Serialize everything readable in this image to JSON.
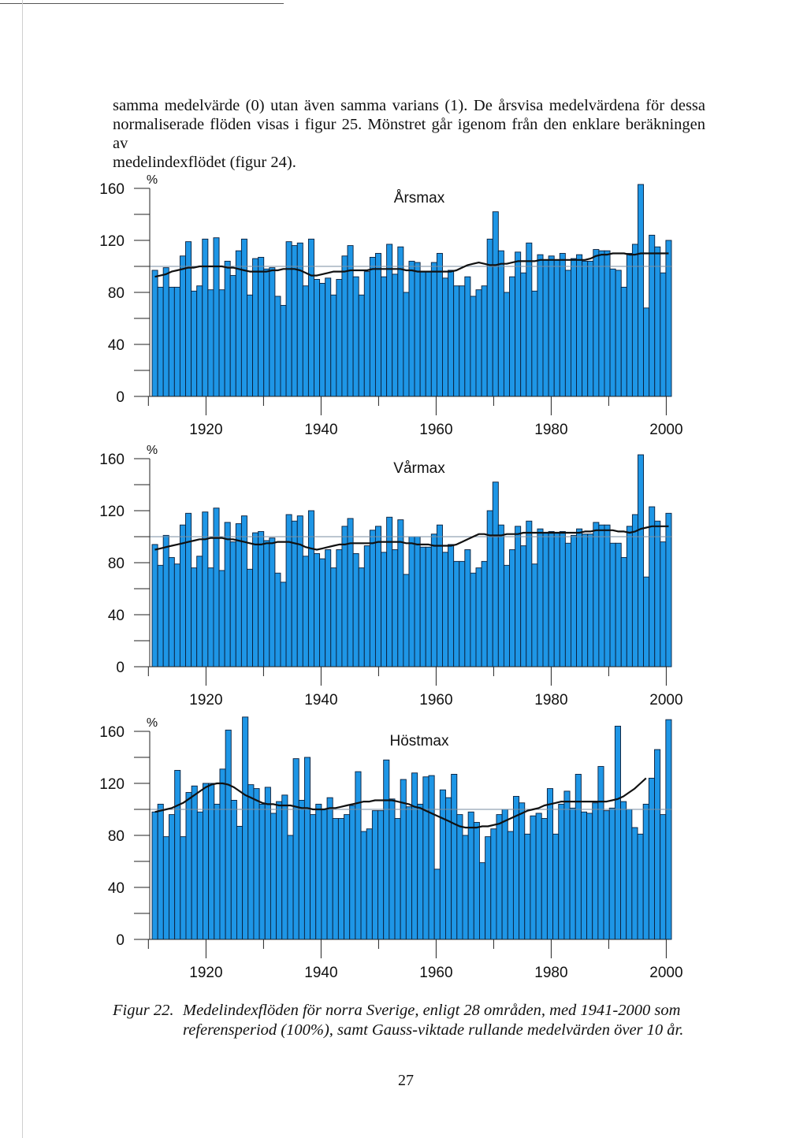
{
  "intro": {
    "lines": [
      "samma medelvärde (0) utan även samma varians (1). De årsvisa medelvärdena för dessa",
      "normaliserade flöden visas i figur 25. Mönstret går igenom från den enklare beräkningen av",
      "medelindexflödet (figur 24)."
    ]
  },
  "chart_data": [
    {
      "type": "bar",
      "title": "Årsmax",
      "ylabel": "%",
      "xlabel": "",
      "ylim": [
        0,
        170
      ],
      "yticks": [
        "0",
        "40",
        "80",
        "120",
        "160"
      ],
      "xticks": [
        "1920",
        "1940",
        "1960",
        "1980",
        "2000"
      ],
      "x_start": 1911,
      "x_end": 2000,
      "reference_line": 100,
      "values": [
        97,
        84,
        99,
        84,
        84,
        108,
        119,
        81,
        85,
        121,
        82,
        122,
        82,
        104,
        93,
        112,
        121,
        78,
        106,
        107,
        98,
        99,
        77,
        70,
        119,
        116,
        118,
        85,
        121,
        90,
        87,
        91,
        78,
        90,
        108,
        116,
        92,
        78,
        96,
        107,
        110,
        92,
        117,
        94,
        115,
        80,
        104,
        103,
        96,
        96,
        103,
        110,
        91,
        97,
        85,
        85,
        92,
        77,
        82,
        85,
        121,
        142,
        112,
        80,
        92,
        111,
        95,
        118,
        81,
        109,
        105,
        108,
        105,
        110,
        97,
        106,
        109,
        104,
        104,
        113,
        112,
        112,
        98,
        97,
        84,
        110,
        117,
        163,
        68,
        124,
        115,
        95,
        120
      ],
      "series": [
        {
          "name": "Gauss-viktat rullande medelvärde 10 år",
          "values": [
            92,
            93,
            94,
            96,
            97,
            98,
            99,
            99,
            100,
            100,
            100,
            100,
            100,
            99,
            99,
            98,
            97,
            96,
            96,
            96,
            96,
            97,
            97,
            98,
            98,
            98,
            97,
            95,
            93,
            93,
            94,
            95,
            96,
            96,
            96,
            97,
            97,
            97,
            97,
            98,
            98,
            98,
            98,
            98,
            98,
            97,
            97,
            96,
            96,
            96,
            96,
            96,
            96,
            96,
            97,
            99,
            101,
            102,
            103,
            102,
            101,
            101,
            102,
            102,
            103,
            104,
            104,
            104,
            104,
            105,
            105,
            105,
            105,
            105,
            105,
            105,
            105,
            105,
            106,
            108,
            109,
            109,
            110,
            110,
            110,
            109,
            109,
            110,
            110,
            110,
            110,
            110,
            110
          ]
        }
      ]
    },
    {
      "type": "bar",
      "title": "Vårmax",
      "ylabel": "%",
      "xlabel": "",
      "ylim": [
        0,
        170
      ],
      "yticks": [
        "0",
        "40",
        "80",
        "120",
        "160"
      ],
      "xticks": [
        "1920",
        "1940",
        "1960",
        "1980",
        "2000"
      ],
      "x_start": 1911,
      "x_end": 2000,
      "reference_line": 100,
      "values": [
        94,
        78,
        101,
        84,
        79,
        109,
        118,
        76,
        85,
        119,
        76,
        122,
        74,
        111,
        96,
        110,
        116,
        75,
        103,
        104,
        97,
        99,
        72,
        65,
        117,
        112,
        116,
        85,
        120,
        87,
        83,
        90,
        76,
        90,
        108,
        114,
        87,
        76,
        93,
        105,
        108,
        88,
        115,
        90,
        113,
        71,
        100,
        100,
        92,
        92,
        102,
        109,
        88,
        94,
        81,
        81,
        90,
        72,
        76,
        81,
        120,
        142,
        109,
        78,
        90,
        108,
        93,
        112,
        79,
        106,
        103,
        104,
        103,
        104,
        95,
        101,
        106,
        102,
        102,
        111,
        109,
        109,
        95,
        95,
        84,
        108,
        117,
        163,
        69,
        123,
        112,
        96,
        118
      ],
      "series": [
        {
          "name": "Gauss-viktat rullande medelvärde 10 år",
          "values": [
            90,
            91,
            92,
            93,
            94,
            95,
            96,
            97,
            98,
            98,
            99,
            99,
            99,
            98,
            98,
            97,
            96,
            95,
            94,
            94,
            95,
            95,
            96,
            96,
            96,
            95,
            94,
            92,
            91,
            90,
            91,
            92,
            93,
            94,
            94,
            95,
            95,
            95,
            95,
            95,
            96,
            96,
            96,
            96,
            96,
            95,
            95,
            94,
            94,
            94,
            93,
            93,
            93,
            93,
            94,
            96,
            98,
            100,
            102,
            102,
            101,
            101,
            101,
            102,
            102,
            102,
            103,
            103,
            103,
            103,
            103,
            103,
            103,
            103,
            103,
            103,
            103,
            104,
            104,
            105,
            105,
            105,
            105,
            104,
            104,
            103,
            104,
            106,
            107,
            108,
            108,
            108,
            108
          ]
        }
      ]
    },
    {
      "type": "bar",
      "title": "Höstmax",
      "ylabel": "%",
      "xlabel": "",
      "ylim": [
        0,
        170
      ],
      "yticks": [
        "0",
        "40",
        "80",
        "120",
        "160"
      ],
      "xticks": [
        "1920",
        "1940",
        "1960",
        "1980",
        "2000"
      ],
      "x_start": 1911,
      "x_end": 2000,
      "reference_line": 100,
      "values": [
        98,
        104,
        79,
        96,
        130,
        79,
        113,
        118,
        98,
        120,
        120,
        104,
        131,
        161,
        107,
        87,
        171,
        119,
        116,
        104,
        117,
        97,
        106,
        111,
        80,
        139,
        107,
        140,
        96,
        104,
        100,
        109,
        93,
        93,
        96,
        103,
        129,
        83,
        85,
        99,
        99,
        138,
        108,
        93,
        123,
        102,
        128,
        104,
        125,
        126,
        54,
        115,
        109,
        127,
        96,
        80,
        98,
        90,
        59,
        79,
        85,
        96,
        100,
        83,
        110,
        105,
        81,
        95,
        97,
        93,
        116,
        81,
        104,
        114,
        101,
        127,
        98,
        97,
        105,
        133,
        99,
        101,
        164,
        106,
        100,
        86,
        81,
        104,
        124,
        146,
        96,
        169
      ],
      "series": [
        {
          "name": "Gauss-viktat rullande medelvärde 10 år",
          "values": [
            98,
            99,
            100,
            101,
            103,
            105,
            108,
            111,
            114,
            117,
            119,
            120,
            120,
            119,
            117,
            114,
            111,
            109,
            107,
            105,
            104,
            104,
            103,
            103,
            103,
            102,
            101,
            101,
            100,
            100,
            100,
            101,
            101,
            102,
            103,
            104,
            105,
            106,
            106,
            107,
            107,
            107,
            107,
            106,
            105,
            104,
            102,
            101,
            99,
            97,
            95,
            93,
            91,
            89,
            87,
            86,
            86,
            86,
            87,
            87,
            88,
            89,
            91,
            93,
            95,
            97,
            99,
            100,
            101,
            103,
            104,
            105,
            106,
            106,
            106,
            106,
            106,
            106,
            106,
            106,
            106,
            107,
            108,
            110,
            113,
            116,
            120,
            124
          ]
        }
      ]
    }
  ],
  "caption": {
    "label": "Figur 22.",
    "lines": [
      "Medelindexflöden för norra Sverige, enligt 28 områden, med 1941-2000 som",
      "referensperiod (100%), samt Gauss-viktade rullande medelvärden över 10 år."
    ]
  },
  "page_number": "27",
  "colors": {
    "bar": "#1e96e6",
    "bar_stroke": "#0a1e3a",
    "line": "#111111",
    "axis": "#222222"
  }
}
